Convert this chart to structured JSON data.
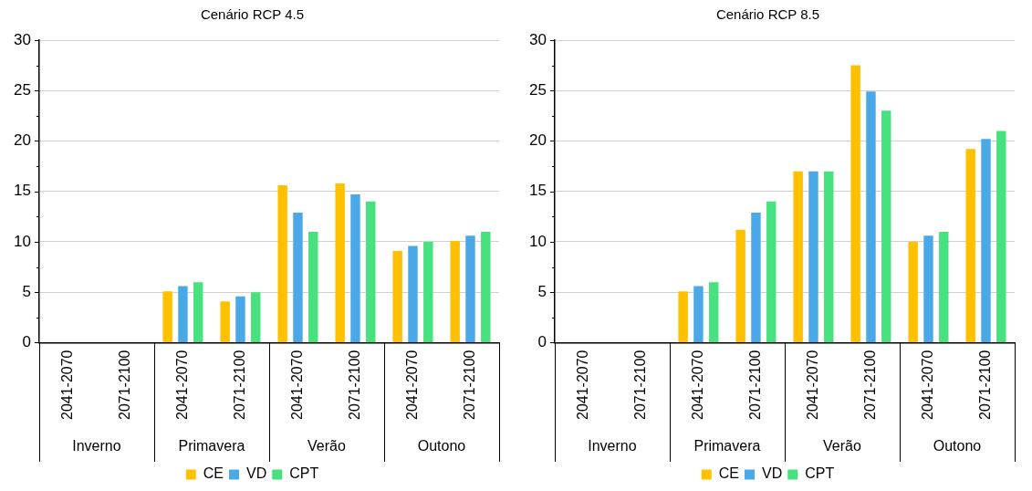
{
  "chart_data": [
    {
      "type": "bar",
      "title": "Cenário RCP 4.5",
      "categories": [
        "2041-2070",
        "2071-2100",
        "2041-2070",
        "2071-2100",
        "2041-2070",
        "2071-2100",
        "2041-2070",
        "2071-2100"
      ],
      "annotations": [
        "Inverno",
        "Primavera",
        "Verão",
        "Outono"
      ],
      "series": [
        {
          "name": "CE",
          "color": "#ffc000",
          "values": [
            0,
            0,
            5.1,
            4.1,
            15.6,
            15.8,
            9.1,
            10.1
          ]
        },
        {
          "name": "VD",
          "color": "#4aa8e8",
          "values": [
            0,
            0,
            5.6,
            4.6,
            12.9,
            14.7,
            9.6,
            10.6
          ]
        },
        {
          "name": "CPT",
          "color": "#47e27f",
          "values": [
            0,
            0,
            6.0,
            5.0,
            11.0,
            14.0,
            10.0,
            11.0
          ]
        }
      ],
      "ylim": [
        0,
        30
      ],
      "yticks": [
        0,
        {
          "value": 2.5,
          "label": null
        },
        5,
        {
          "value": 7.5,
          "label": null
        },
        10,
        {
          "value": 12.5,
          "label": null
        },
        15,
        {
          "value": 17.5,
          "label": null
        },
        20,
        {
          "value": 22.5,
          "label": null
        },
        25,
        {
          "value": 27.5,
          "label": null
        },
        30
      ],
      "grid": "y",
      "legend": "bottom"
    },
    {
      "type": "bar",
      "title": "Cenário RCP 8.5",
      "categories": [
        "2041-2070",
        "2071-2100",
        "2041-2070",
        "2071-2100",
        "2041-2070",
        "2071-2100",
        "2041-2070",
        "2071-2100"
      ],
      "annotations": [
        "Inverno",
        "Primavera",
        "Verão",
        "Outono"
      ],
      "series": [
        {
          "name": "CE",
          "color": "#ffc000",
          "values": [
            0,
            0,
            5.1,
            11.2,
            17.0,
            27.5,
            10.0,
            19.2
          ]
        },
        {
          "name": "VD",
          "color": "#4aa8e8",
          "values": [
            0,
            0,
            5.6,
            12.9,
            17.0,
            24.9,
            10.6,
            20.2
          ]
        },
        {
          "name": "CPT",
          "color": "#47e27f",
          "values": [
            0,
            0,
            6.0,
            14.0,
            17.0,
            23.0,
            11.0,
            21.0
          ]
        }
      ],
      "ylim": [
        0,
        30
      ],
      "yticks": [
        0,
        {
          "value": 2.5,
          "label": null
        },
        5,
        {
          "value": 7.5,
          "label": null
        },
        10,
        {
          "value": 12.5,
          "label": null
        },
        15,
        {
          "value": 17.5,
          "label": null
        },
        20,
        {
          "value": 22.5,
          "label": null
        },
        25,
        {
          "value": 27.5,
          "label": null
        },
        30
      ],
      "grid": "y",
      "legend": "bottom"
    }
  ]
}
